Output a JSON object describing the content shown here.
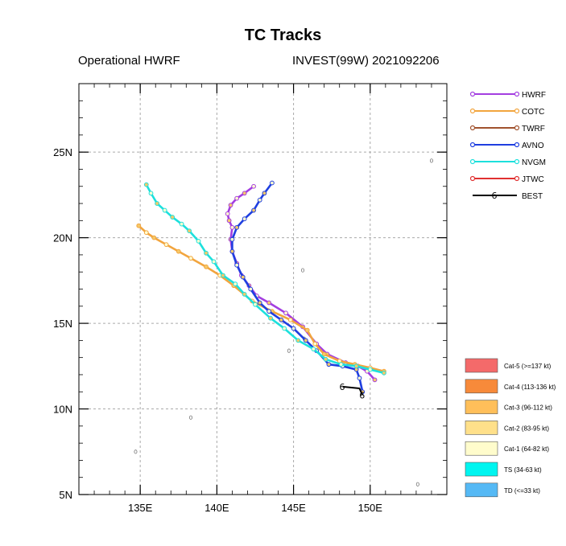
{
  "header": {
    "title": "TC Tracks",
    "model": "Operational HWRF",
    "storm_cycle": "INVEST(99W) 2021092206"
  },
  "chart_data": {
    "type": "map-tracks",
    "x_range": [
      131,
      155
    ],
    "y_range": [
      5,
      29
    ],
    "x_ticks": [
      {
        "value": 135,
        "label": "135E"
      },
      {
        "value": 140,
        "label": "140E"
      },
      {
        "value": 145,
        "label": "145E"
      },
      {
        "value": 150,
        "label": "150E"
      }
    ],
    "y_ticks": [
      {
        "value": 5,
        "label": "5N"
      },
      {
        "value": 10,
        "label": "10N"
      },
      {
        "value": 15,
        "label": "15N"
      },
      {
        "value": 20,
        "label": "20N"
      },
      {
        "value": 25,
        "label": "25N"
      }
    ],
    "grid": true,
    "series": [
      {
        "name": "HWRF",
        "color": "#a33ee0",
        "points": [
          [
            150.3,
            11.7
          ],
          [
            149.8,
            12.2
          ],
          [
            149.2,
            12.5
          ],
          [
            148.4,
            12.7
          ],
          [
            147.2,
            13.2
          ],
          [
            146.5,
            13.8
          ],
          [
            145.6,
            14.8
          ],
          [
            144.5,
            15.6
          ],
          [
            143.4,
            16.2
          ],
          [
            142.6,
            16.6
          ],
          [
            142.1,
            17.2
          ],
          [
            141.6,
            17.8
          ],
          [
            141.3,
            18.5
          ],
          [
            141.0,
            19.2
          ],
          [
            140.9,
            19.9
          ],
          [
            141.0,
            20.6
          ],
          [
            140.8,
            21.0
          ],
          [
            140.7,
            21.4
          ],
          [
            140.9,
            21.9
          ],
          [
            141.3,
            22.3
          ],
          [
            141.8,
            22.6
          ],
          [
            142.4,
            23.0
          ]
        ]
      },
      {
        "name": "COTC",
        "color": "#f2a53e",
        "points": [
          [
            150.9,
            12.2
          ],
          [
            150.0,
            12.4
          ],
          [
            149.0,
            12.6
          ],
          [
            148.0,
            12.8
          ],
          [
            147.0,
            13.2
          ],
          [
            146.4,
            13.8
          ],
          [
            145.9,
            14.6
          ],
          [
            144.8,
            15.2
          ],
          [
            143.6,
            15.7
          ],
          [
            142.3,
            16.3
          ],
          [
            141.1,
            17.2
          ],
          [
            140.2,
            17.8
          ],
          [
            139.3,
            18.3
          ],
          [
            138.3,
            18.8
          ],
          [
            137.5,
            19.2
          ],
          [
            136.7,
            19.6
          ],
          [
            135.9,
            20.0
          ],
          [
            135.4,
            20.3
          ],
          [
            134.9,
            20.7
          ]
        ]
      },
      {
        "name": "TWRF",
        "color": "#a0522d",
        "points": []
      },
      {
        "name": "AVNO",
        "color": "#1f3fe0",
        "points": [
          [
            149.5,
            11.0
          ],
          [
            149.3,
            11.8
          ],
          [
            149.1,
            12.3
          ],
          [
            148.2,
            12.5
          ],
          [
            147.3,
            12.6
          ],
          [
            146.5,
            13.4
          ],
          [
            145.8,
            14.0
          ],
          [
            145.0,
            14.7
          ],
          [
            144.2,
            15.2
          ],
          [
            143.4,
            15.7
          ],
          [
            142.8,
            16.2
          ],
          [
            142.2,
            17.0
          ],
          [
            141.7,
            17.7
          ],
          [
            141.3,
            18.4
          ],
          [
            141.0,
            19.2
          ],
          [
            141.0,
            19.9
          ],
          [
            141.3,
            20.6
          ],
          [
            141.8,
            21.1
          ],
          [
            142.4,
            21.6
          ],
          [
            142.8,
            22.2
          ],
          [
            143.1,
            22.6
          ],
          [
            143.6,
            23.2
          ]
        ]
      },
      {
        "name": "NVGM",
        "color": "#1de0dc",
        "points": [
          [
            150.9,
            12.1
          ],
          [
            150.0,
            12.3
          ],
          [
            149.1,
            12.5
          ],
          [
            148.1,
            12.6
          ],
          [
            147.1,
            12.9
          ],
          [
            146.3,
            13.5
          ],
          [
            145.3,
            14.0
          ],
          [
            144.4,
            14.7
          ],
          [
            143.5,
            15.3
          ],
          [
            142.5,
            16.1
          ],
          [
            141.8,
            16.7
          ],
          [
            141.2,
            17.3
          ],
          [
            140.4,
            17.8
          ],
          [
            139.8,
            18.6
          ],
          [
            139.3,
            19.1
          ],
          [
            138.8,
            19.8
          ],
          [
            138.2,
            20.4
          ],
          [
            137.7,
            20.8
          ],
          [
            137.1,
            21.2
          ],
          [
            136.6,
            21.6
          ],
          [
            136.1,
            22.0
          ],
          [
            135.7,
            22.6
          ],
          [
            135.4,
            23.1
          ]
        ]
      },
      {
        "name": "JTWC",
        "color": "#e03030",
        "points": []
      },
      {
        "name": "BEST",
        "color": "#000000",
        "points": [
          [
            149.5,
            10.8
          ],
          [
            149.3,
            11.2
          ],
          [
            148.2,
            11.3
          ]
        ]
      }
    ],
    "point_fill_colors": [
      "#f5c96a",
      "#fffdd0",
      "#66e8e0",
      "#5ab4f5",
      "#ffffff"
    ],
    "legend": {
      "position": "top-right",
      "entries": [
        {
          "label": "HWRF",
          "color": "#a33ee0"
        },
        {
          "label": "COTC",
          "color": "#f2a53e"
        },
        {
          "label": "TWRF",
          "color": "#a0522d"
        },
        {
          "label": "AVNO",
          "color": "#1f3fe0"
        },
        {
          "label": "NVGM",
          "color": "#1de0dc"
        },
        {
          "label": "JTWC",
          "color": "#e03030"
        },
        {
          "label": "BEST",
          "color": "#000000"
        }
      ]
    },
    "intensity_legend": [
      {
        "label": "Cat-5 (>=137 kt)",
        "color": "#f46a6a"
      },
      {
        "label": "Cat-4 (113-136 kt)",
        "color": "#f78a3a"
      },
      {
        "label": "Cat-3 (96-112 kt)",
        "color": "#ffbf5a"
      },
      {
        "label": "Cat-2 (83-95 kt)",
        "color": "#ffe08a"
      },
      {
        "label": "Cat-1 (64-82 kt)",
        "color": "#fffccc"
      },
      {
        "label": "TS (34-63 kt)",
        "color": "#00f5f0"
      },
      {
        "label": "TD (<=33 kt)",
        "color": "#55b9f5"
      }
    ]
  }
}
